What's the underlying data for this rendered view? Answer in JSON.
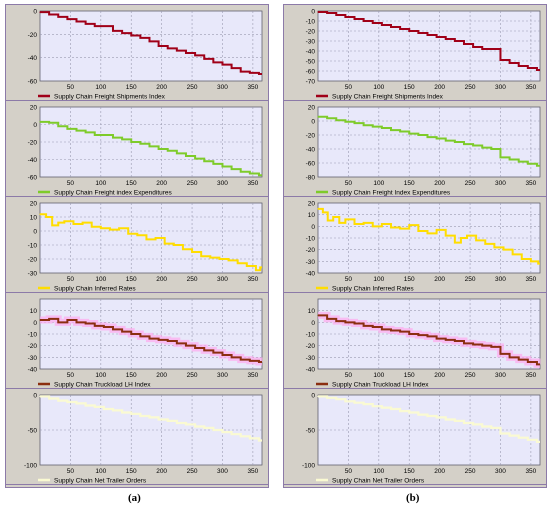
{
  "captions": {
    "a": "(a)",
    "b": "(b)"
  },
  "colors": {
    "panel_bg": "#d4d0c8",
    "plot_bg": "#e8e8fa",
    "grid": "#9a9ab0",
    "border": "#8c7aa8"
  },
  "chart_data": [
    {
      "id": "a-1",
      "type": "line",
      "panel": "a",
      "legend": "Supply Chain Freight Shipments Index",
      "color": "#a00018",
      "xlim": [
        0,
        365
      ],
      "ylim": [
        -60,
        0
      ],
      "xticks": [
        50,
        100,
        150,
        200,
        250,
        300,
        350
      ],
      "yticks": [
        0,
        -20,
        -40,
        -60
      ],
      "x": [
        0,
        15,
        30,
        45,
        60,
        75,
        90,
        105,
        120,
        135,
        150,
        165,
        180,
        195,
        210,
        225,
        240,
        255,
        270,
        285,
        300,
        315,
        330,
        345,
        360
      ],
      "y": [
        -1,
        -3,
        -5,
        -7,
        -9,
        -11,
        -13,
        -13,
        -17,
        -19,
        -21,
        -23,
        -26,
        -30,
        -32,
        -34,
        -36,
        -38,
        -41,
        -44,
        -46,
        -49,
        -52,
        -53,
        -54
      ]
    },
    {
      "id": "a-2",
      "type": "line",
      "panel": "a",
      "legend": "Supply Chain Freight index Expenditures",
      "color": "#7ecb2a",
      "xlim": [
        0,
        365
      ],
      "ylim": [
        -60,
        20
      ],
      "xticks": [
        50,
        100,
        150,
        200,
        250,
        300,
        350
      ],
      "yticks": [
        20,
        0,
        -20,
        -40,
        -60
      ],
      "x": [
        0,
        15,
        30,
        45,
        60,
        75,
        90,
        105,
        120,
        135,
        150,
        165,
        180,
        195,
        210,
        225,
        240,
        255,
        270,
        285,
        300,
        315,
        330,
        345,
        360
      ],
      "y": [
        3,
        2,
        -2,
        -5,
        -7,
        -9,
        -12,
        -12,
        -15,
        -17,
        -20,
        -22,
        -25,
        -28,
        -30,
        -33,
        -36,
        -39,
        -42,
        -45,
        -48,
        -51,
        -54,
        -56,
        -58
      ]
    },
    {
      "id": "a-3",
      "type": "line",
      "panel": "a",
      "legend": "Supply Chain Inferred Rates",
      "color": "#ffdd00",
      "xlim": [
        0,
        365
      ],
      "ylim": [
        -30,
        20
      ],
      "xticks": [
        50,
        100,
        150,
        200,
        250,
        300,
        350
      ],
      "yticks": [
        20,
        10,
        0,
        -10,
        -20,
        -30
      ],
      "x": [
        0,
        10,
        20,
        30,
        40,
        55,
        70,
        85,
        100,
        115,
        130,
        145,
        160,
        175,
        190,
        205,
        220,
        235,
        250,
        265,
        280,
        295,
        310,
        325,
        340,
        355,
        362
      ],
      "y": [
        12,
        10,
        4,
        6,
        7,
        5,
        6,
        3,
        2,
        1,
        2,
        -2,
        -3,
        -6,
        -5,
        -9,
        -10,
        -13,
        -15,
        -18,
        -19,
        -20,
        -21,
        -23,
        -25,
        -28,
        -26
      ]
    },
    {
      "id": "a-4",
      "type": "line",
      "panel": "a",
      "legend": "Supply Chain Truckload LH Index",
      "color": "#8b2e10",
      "band_color": "#ffaaee",
      "xlim": [
        0,
        365
      ],
      "ylim": [
        -40,
        20
      ],
      "xticks": [
        50,
        100,
        150,
        200,
        250,
        300,
        350
      ],
      "yticks": [
        10,
        0,
        -10,
        -20,
        -30,
        -40
      ],
      "x": [
        0,
        15,
        30,
        45,
        60,
        75,
        90,
        105,
        120,
        135,
        150,
        165,
        180,
        195,
        210,
        225,
        240,
        255,
        270,
        285,
        300,
        315,
        330,
        345,
        360
      ],
      "y": [
        2,
        3,
        0,
        2,
        0,
        -1,
        -3,
        -4,
        -6,
        -8,
        -10,
        -12,
        -14,
        -15,
        -16,
        -18,
        -20,
        -22,
        -24,
        -26,
        -28,
        -30,
        -32,
        -33,
        -34
      ]
    },
    {
      "id": "a-5",
      "type": "line",
      "panel": "a",
      "legend": "Supply Chain Net Trailer Orders",
      "color": "#fafad2",
      "xlim": [
        0,
        365
      ],
      "ylim": [
        -100,
        0
      ],
      "xticks": [
        50,
        100,
        150,
        200,
        250,
        300,
        350
      ],
      "yticks": [
        0,
        -50,
        -100
      ],
      "x": [
        0,
        15,
        30,
        45,
        60,
        75,
        90,
        105,
        120,
        135,
        150,
        165,
        180,
        195,
        210,
        225,
        240,
        255,
        270,
        285,
        300,
        315,
        330,
        345,
        360
      ],
      "y": [
        -2,
        -5,
        -8,
        -10,
        -12,
        -15,
        -17,
        -20,
        -22,
        -25,
        -27,
        -30,
        -32,
        -35,
        -37,
        -40,
        -42,
        -45,
        -47,
        -50,
        -53,
        -56,
        -59,
        -62,
        -65
      ]
    },
    {
      "id": "b-1",
      "type": "line",
      "panel": "b",
      "legend": "Supply Chain Freight Shipments Index",
      "color": "#a00018",
      "xlim": [
        0,
        365
      ],
      "ylim": [
        -70,
        0
      ],
      "xticks": [
        50,
        100,
        150,
        200,
        250,
        300,
        350
      ],
      "yticks": [
        0,
        -10,
        -20,
        -30,
        -40,
        -50,
        -60,
        -70
      ],
      "x": [
        0,
        15,
        30,
        45,
        60,
        75,
        90,
        105,
        120,
        135,
        150,
        165,
        180,
        195,
        210,
        225,
        240,
        255,
        270,
        285,
        300,
        315,
        330,
        345,
        360
      ],
      "y": [
        -1,
        -2,
        -4,
        -6,
        -8,
        -10,
        -12,
        -14,
        -16,
        -18,
        -20,
        -22,
        -24,
        -26,
        -28,
        -30,
        -33,
        -36,
        -38,
        -38,
        -49,
        -52,
        -55,
        -57,
        -59
      ]
    },
    {
      "id": "b-2",
      "type": "line",
      "panel": "b",
      "legend": "Supply Chain Freight Index Expenditures",
      "color": "#7ecb2a",
      "xlim": [
        0,
        365
      ],
      "ylim": [
        -80,
        20
      ],
      "xticks": [
        50,
        100,
        150,
        200,
        250,
        300,
        350
      ],
      "yticks": [
        20,
        0,
        -20,
        -40,
        -60,
        -80
      ],
      "x": [
        0,
        15,
        30,
        45,
        60,
        75,
        90,
        105,
        120,
        135,
        150,
        165,
        180,
        195,
        210,
        225,
        240,
        255,
        270,
        285,
        300,
        315,
        330,
        345,
        360
      ],
      "y": [
        6,
        4,
        1,
        -1,
        -3,
        -6,
        -8,
        -10,
        -13,
        -15,
        -18,
        -20,
        -23,
        -25,
        -28,
        -30,
        -33,
        -35,
        -38,
        -40,
        -52,
        -55,
        -58,
        -61,
        -64
      ]
    },
    {
      "id": "b-3",
      "type": "line",
      "panel": "b",
      "legend": "Supply Chain Inferred Rates",
      "color": "#ffdd00",
      "xlim": [
        0,
        365
      ],
      "ylim": [
        -40,
        20
      ],
      "xticks": [
        50,
        100,
        150,
        200,
        250,
        300,
        350
      ],
      "yticks": [
        20,
        10,
        0,
        -10,
        -20,
        -30,
        -40
      ],
      "x": [
        0,
        8,
        16,
        25,
        35,
        45,
        60,
        75,
        90,
        105,
        120,
        135,
        150,
        165,
        180,
        195,
        210,
        225,
        235,
        245,
        260,
        275,
        290,
        305,
        320,
        335,
        350,
        362
      ],
      "y": [
        15,
        12,
        5,
        8,
        3,
        6,
        2,
        3,
        0,
        2,
        -1,
        -2,
        1,
        -4,
        -6,
        -3,
        -8,
        -14,
        -10,
        -8,
        -12,
        -15,
        -18,
        -20,
        -24,
        -28,
        -30,
        -32
      ]
    },
    {
      "id": "b-4",
      "type": "line",
      "panel": "b",
      "legend": "Supply Chain Truckload LH Index",
      "color": "#8b2e10",
      "band_color": "#ffaaee",
      "xlim": [
        0,
        365
      ],
      "ylim": [
        -40,
        20
      ],
      "xticks": [
        50,
        100,
        150,
        200,
        250,
        300,
        350
      ],
      "yticks": [
        10,
        0,
        -10,
        -20,
        -30,
        -40
      ],
      "x": [
        0,
        15,
        30,
        45,
        60,
        75,
        90,
        105,
        120,
        135,
        150,
        165,
        180,
        195,
        210,
        225,
        240,
        255,
        270,
        285,
        300,
        315,
        330,
        345,
        360
      ],
      "y": [
        6,
        3,
        1,
        0,
        -1,
        -3,
        -4,
        -6,
        -7,
        -8,
        -10,
        -11,
        -12,
        -14,
        -15,
        -16,
        -18,
        -19,
        -20,
        -21,
        -27,
        -30,
        -32,
        -34,
        -36
      ]
    },
    {
      "id": "b-5",
      "type": "line",
      "panel": "b",
      "legend": "Supply Chain Net Trailer Orders",
      "color": "#fafad2",
      "xlim": [
        0,
        365
      ],
      "ylim": [
        -100,
        0
      ],
      "xticks": [
        50,
        100,
        150,
        200,
        250,
        300,
        350
      ],
      "yticks": [
        0,
        -50,
        -100
      ],
      "x": [
        0,
        15,
        30,
        45,
        60,
        75,
        90,
        105,
        120,
        135,
        150,
        165,
        180,
        195,
        210,
        225,
        240,
        255,
        270,
        285,
        300,
        315,
        330,
        345,
        360
      ],
      "y": [
        -2,
        -4,
        -6,
        -9,
        -11,
        -13,
        -16,
        -18,
        -20,
        -23,
        -25,
        -28,
        -30,
        -32,
        -35,
        -37,
        -40,
        -42,
        -45,
        -47,
        -55,
        -58,
        -61,
        -64,
        -67
      ]
    }
  ]
}
